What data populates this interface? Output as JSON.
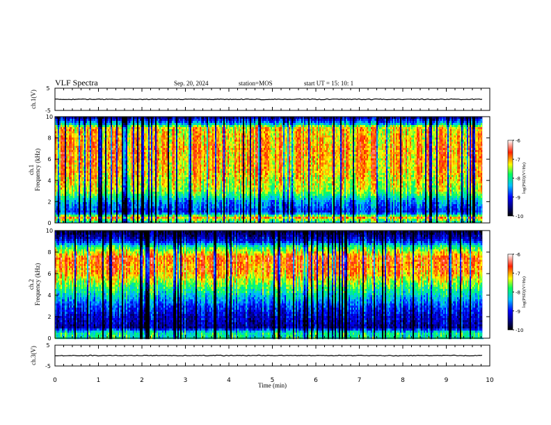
{
  "header": {
    "title": "VLF Spectra",
    "date": "Sep. 20, 2024",
    "station": "station=MOS",
    "start_ut": "start  UT  =   15: 10: 1"
  },
  "chart_data": [
    {
      "type": "line",
      "panel": "ch1-voltage",
      "ylabel": "ch.1(V)",
      "ylim": [
        -5,
        5
      ],
      "yticks": [
        "5",
        "-5"
      ],
      "series": [
        {
          "x": [
            0,
            9.83
          ],
          "y": [
            0,
            0
          ]
        }
      ]
    },
    {
      "type": "heatmap",
      "panel": "ch1-spectrogram",
      "ylabel": "ch.1\nFrequency (kHz)",
      "ylim": [
        0,
        10
      ],
      "yticks": [
        "0",
        "2",
        "4",
        "6",
        "8",
        "10"
      ],
      "data_xlim": [
        0,
        9.83
      ],
      "profile_log_psd": [
        {
          "f": 0,
          "v": -8.2
        },
        {
          "f": 0.5,
          "v": -7.0
        },
        {
          "f": 1.0,
          "v": -9.0
        },
        {
          "f": 2.0,
          "v": -8.5
        },
        {
          "f": 3.0,
          "v": -7.5
        },
        {
          "f": 5.0,
          "v": -7.1
        },
        {
          "f": 7.0,
          "v": -7.0
        },
        {
          "f": 9.0,
          "v": -7.2
        },
        {
          "f": 9.3,
          "v": -8.3
        },
        {
          "f": 10,
          "v": -9.6
        }
      ],
      "colorbar": {
        "label": "log(PSD)(V²/Hz)",
        "ticks": [
          "-6",
          "-7",
          "-8",
          "-9",
          "-10"
        ],
        "range": [
          -10,
          -6
        ]
      }
    },
    {
      "type": "heatmap",
      "panel": "ch2-spectrogram",
      "ylabel": "ch.2\nFrequency (kHz)",
      "ylim": [
        0,
        10
      ],
      "yticks": [
        "0",
        "2",
        "4",
        "6",
        "8",
        "10"
      ],
      "data_xlim": [
        0,
        9.83
      ],
      "profile_log_psd": [
        {
          "f": 0,
          "v": -8.0
        },
        {
          "f": 0.5,
          "v": -8.0
        },
        {
          "f": 1.0,
          "v": -9.4
        },
        {
          "f": 2.0,
          "v": -9.2
        },
        {
          "f": 3.0,
          "v": -8.8
        },
        {
          "f": 4.0,
          "v": -8.2
        },
        {
          "f": 5.0,
          "v": -7.6
        },
        {
          "f": 6.0,
          "v": -7.0
        },
        {
          "f": 7.5,
          "v": -6.8
        },
        {
          "f": 8.5,
          "v": -7.9
        },
        {
          "f": 9.0,
          "v": -9.0
        },
        {
          "f": 10,
          "v": -9.8
        }
      ],
      "colorbar": {
        "label": "log(PSD)(V²/Hz)",
        "ticks": [
          "-6",
          "-7",
          "-8",
          "-9",
          "-10"
        ],
        "range": [
          -10,
          -6
        ]
      }
    },
    {
      "type": "line",
      "panel": "ch3-voltage",
      "ylabel": "ch.3(V)",
      "ylim": [
        -5,
        5
      ],
      "yticks": [
        "5",
        "-5"
      ],
      "xlabel": "Time  (min)",
      "xlim": [
        0,
        10
      ],
      "xticks": [
        "0",
        "1",
        "2",
        "3",
        "4",
        "5",
        "6",
        "7",
        "8",
        "9",
        "10"
      ],
      "series": [
        {
          "x": [
            0,
            9.83
          ],
          "y": [
            0,
            0
          ]
        }
      ]
    }
  ]
}
